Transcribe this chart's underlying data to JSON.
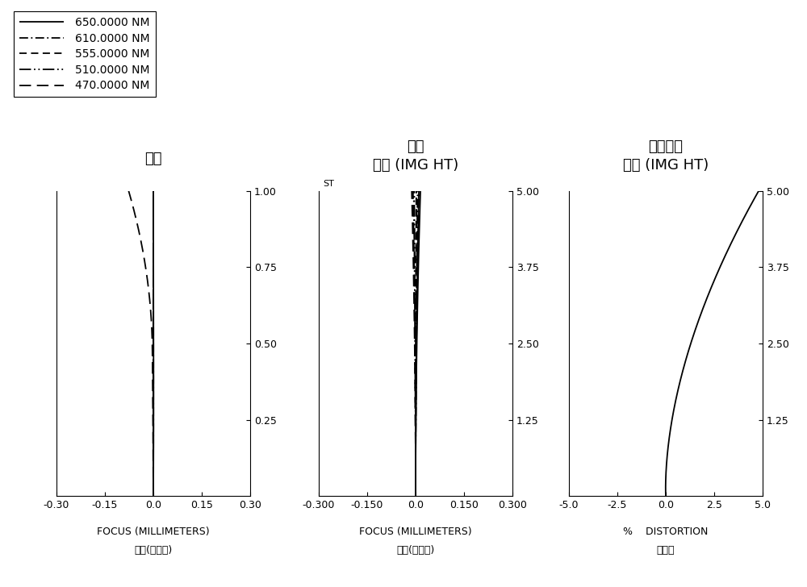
{
  "title_sa": "球差",
  "title_astig_line1": "像散",
  "title_astig_line2": "像高 (IMG HT)",
  "title_dist_line1": "光學畸變",
  "title_dist_line2": "像高 (IMG HT)",
  "xlabel1_line1": "FOCUS (MILLIMETERS)",
  "xlabel1_line2": "焦點(偏移量)",
  "xlabel2_line1": "FOCUS (MILLIMETERS)",
  "xlabel2_line2": "焦點(偏移量)",
  "xlabel3_line1": "%    DISTORTION",
  "xlabel3_line2": "畸變率",
  "astig_st_label": "ST",
  "wavelengths": [
    "650.0000 NM",
    "610.0000 NM",
    "555.0000 NM",
    "510.0000 NM",
    "470.0000 NM"
  ],
  "sa_xlim": [
    -0.3,
    0.3
  ],
  "sa_ylim": [
    0.0,
    1.0
  ],
  "sa_xticks": [
    -0.3,
    -0.15,
    0.0,
    0.15,
    0.3
  ],
  "sa_yticks": [
    0.25,
    0.5,
    0.75,
    1.0
  ],
  "astig_xlim": [
    -0.3,
    0.3
  ],
  "astig_ylim": [
    0.0,
    5.0
  ],
  "astig_xticks": [
    -0.3,
    -0.15,
    0.0,
    0.15,
    0.3
  ],
  "astig_yticks": [
    1.25,
    2.5,
    3.75,
    5.0
  ],
  "dist_xlim": [
    -5.0,
    5.0
  ],
  "dist_ylim": [
    0.0,
    5.0
  ],
  "dist_xticks": [
    -5.0,
    -2.5,
    0.0,
    2.5,
    5.0
  ],
  "dist_yticks": [
    1.25,
    2.5,
    3.75,
    5.0
  ],
  "bg_color": "#ffffff",
  "line_color": "#000000",
  "font_size_title": 13,
  "font_size_label": 9,
  "font_size_tick": 9,
  "font_size_legend": 10
}
